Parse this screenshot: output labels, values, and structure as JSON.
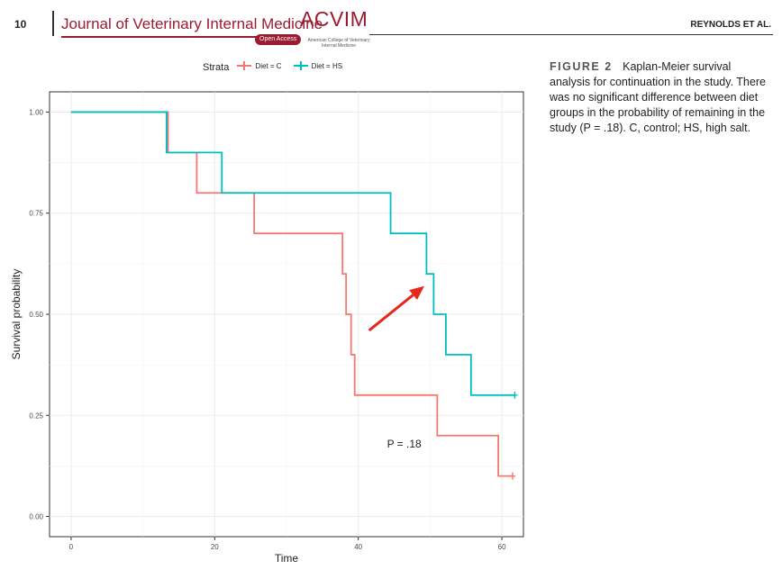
{
  "header": {
    "page_number": "10",
    "journal_title": "Journal of Veterinary Internal Medicine",
    "open_access": "Open Access",
    "logo_text": "ACVIM",
    "logo_subtitle": "American College of Veterinary Internal Medicine",
    "running_author": "REYNOLDS ET AL."
  },
  "caption": {
    "label": "FIGURE 2",
    "text": "Kaplan-Meier survival analysis for continuation in the study. There was no significant difference between diet groups in the probability of remaining in the study (P = .18). C, control; HS, high salt."
  },
  "colors": {
    "control": "#f8766d",
    "high_salt": "#00bfc4",
    "arrow": "#e8261c"
  },
  "chart_data": {
    "type": "line",
    "step": true,
    "xlabel": "Time",
    "ylabel": "Survival probability",
    "xlim": [
      -3,
      63
    ],
    "ylim": [
      -0.05,
      1.05
    ],
    "x_ticks": [
      0,
      20,
      40,
      60
    ],
    "y_ticks": [
      0,
      0.25,
      0.5,
      0.75,
      1.0
    ],
    "y_tick_labels": [
      "0.00",
      "0.25",
      "0.50",
      "0.75",
      "1.00"
    ],
    "grid": true,
    "legend": {
      "title": "Strata",
      "position": "top"
    },
    "annotation": "P = .18",
    "annotation_position": [
      44,
      0.17
    ],
    "arrow": {
      "from": [
        41.5,
        0.46
      ],
      "to": [
        49.2,
        0.57
      ]
    },
    "series": [
      {
        "name": "Diet = C",
        "color": "#f8766d",
        "points": [
          [
            0,
            1.0
          ],
          [
            13.5,
            1.0
          ],
          [
            13.5,
            0.9
          ],
          [
            17.5,
            0.9
          ],
          [
            17.5,
            0.8
          ],
          [
            25.5,
            0.8
          ],
          [
            25.5,
            0.7
          ],
          [
            37.8,
            0.7
          ],
          [
            37.8,
            0.6
          ],
          [
            38.3,
            0.6
          ],
          [
            38.3,
            0.5
          ],
          [
            39,
            0.5
          ],
          [
            39,
            0.4
          ],
          [
            39.5,
            0.4
          ],
          [
            39.5,
            0.3
          ],
          [
            51,
            0.3
          ],
          [
            51,
            0.2
          ],
          [
            59.5,
            0.2
          ],
          [
            59.5,
            0.1
          ],
          [
            61.5,
            0.1
          ]
        ],
        "censor": [
          [
            61.5,
            0.1
          ]
        ]
      },
      {
        "name": "Diet = HS",
        "color": "#00bfc4",
        "points": [
          [
            0,
            1.0
          ],
          [
            13.3,
            1.0
          ],
          [
            13.3,
            0.9
          ],
          [
            21,
            0.9
          ],
          [
            21,
            0.8
          ],
          [
            44.5,
            0.8
          ],
          [
            44.5,
            0.7
          ],
          [
            49.5,
            0.7
          ],
          [
            49.5,
            0.6
          ],
          [
            50.5,
            0.6
          ],
          [
            50.5,
            0.5
          ],
          [
            52.2,
            0.5
          ],
          [
            52.2,
            0.4
          ],
          [
            55.7,
            0.4
          ],
          [
            55.7,
            0.3
          ],
          [
            61.8,
            0.3
          ]
        ],
        "censor": [
          [
            61.8,
            0.3
          ]
        ]
      }
    ]
  }
}
